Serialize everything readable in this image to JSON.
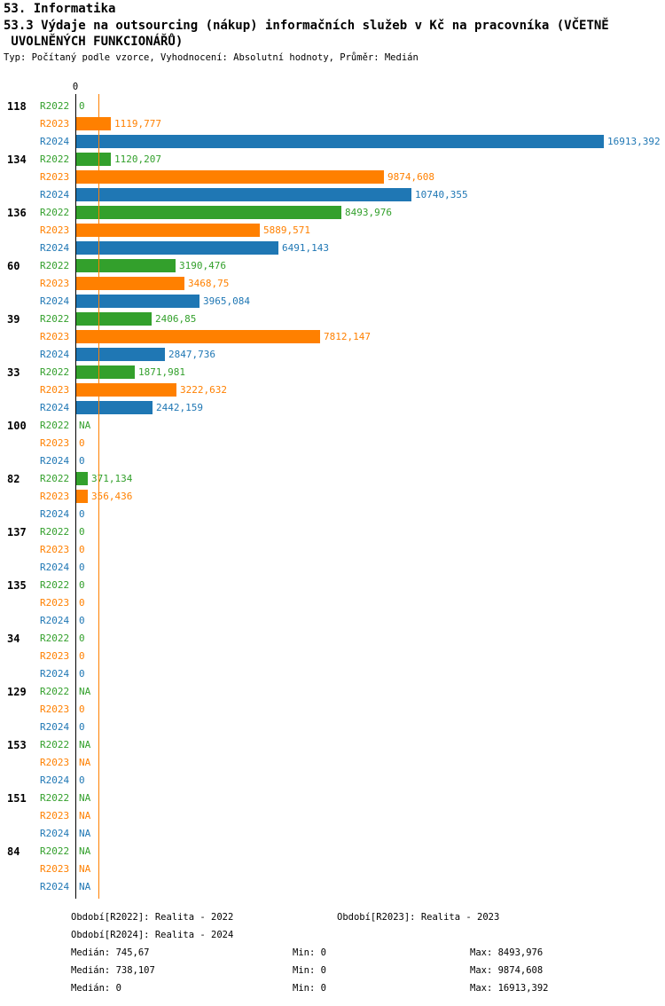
{
  "page": {
    "title": "53. Informatika",
    "subtitle_lines": [
      "53.3 Výdaje na outsourcing (nákup) informačních služeb v Kč na pracovníka (VČETNĚ",
      " UVOLNĚNÝCH FUNKCIONÁŘŮ)"
    ],
    "meta": "Typ: Počítaný podle vzorce, Vyhodnocení: Absolutní hodnoty, Průměr: Medián"
  },
  "colors": {
    "r2022": "#33a02c",
    "r2023": "#ff8000",
    "r2024": "#1f77b4",
    "axis": "#000000"
  },
  "chart_data": {
    "type": "bar",
    "orientation": "horizontal",
    "x_axis": {
      "zero_label": "0",
      "min": 0,
      "max": 16913.392,
      "grid": false
    },
    "series": [
      "R2022",
      "R2023",
      "R2024"
    ],
    "groups": [
      {
        "label": "118",
        "values": [
          0,
          1119.777,
          16913.392
        ],
        "display": [
          "0",
          "1119,777",
          "16913,392"
        ]
      },
      {
        "label": "134",
        "values": [
          1120.207,
          9874.608,
          10740.355
        ],
        "display": [
          "1120,207",
          "9874,608",
          "10740,355"
        ]
      },
      {
        "label": "136",
        "values": [
          8493.976,
          5889.571,
          6491.143
        ],
        "display": [
          "8493,976",
          "5889,571",
          "6491,143"
        ]
      },
      {
        "label": "60",
        "values": [
          3190.476,
          3468.75,
          3965.084
        ],
        "display": [
          "3190,476",
          "3468,75",
          "3965,084"
        ]
      },
      {
        "label": "39",
        "values": [
          2406.85,
          7812.147,
          2847.736
        ],
        "display": [
          "2406,85",
          "7812,147",
          "2847,736"
        ]
      },
      {
        "label": "33",
        "values": [
          1871.981,
          3222.632,
          2442.159
        ],
        "display": [
          "1871,981",
          "3222,632",
          "2442,159"
        ]
      },
      {
        "label": "100",
        "values": [
          null,
          0,
          0
        ],
        "display": [
          "NA",
          "0",
          "0"
        ]
      },
      {
        "label": "82",
        "values": [
          371.134,
          356.436,
          0
        ],
        "display": [
          "371,134",
          "356,436",
          "0"
        ]
      },
      {
        "label": "137",
        "values": [
          0,
          0,
          0
        ],
        "display": [
          "0",
          "0",
          "0"
        ]
      },
      {
        "label": "135",
        "values": [
          0,
          0,
          0
        ],
        "display": [
          "0",
          "0",
          "0"
        ]
      },
      {
        "label": "34",
        "values": [
          0,
          0,
          0
        ],
        "display": [
          "0",
          "0",
          "0"
        ]
      },
      {
        "label": "129",
        "values": [
          null,
          0,
          0
        ],
        "display": [
          "NA",
          "0",
          "0"
        ]
      },
      {
        "label": "153",
        "values": [
          null,
          null,
          0
        ],
        "display": [
          "NA",
          "NA",
          "0"
        ]
      },
      {
        "label": "151",
        "values": [
          null,
          null,
          null
        ],
        "display": [
          "NA",
          "NA",
          "NA"
        ]
      },
      {
        "label": "84",
        "values": [
          null,
          null,
          null
        ],
        "display": [
          "NA",
          "NA",
          "NA"
        ]
      }
    ],
    "medians": [
      745.67,
      738.107,
      0
    ]
  },
  "legend": {
    "r2022": "Období[R2022]: Realita - 2022",
    "r2023": "Období[R2023]: Realita - 2023",
    "r2024": "Období[R2024]: Realita - 2024"
  },
  "stats": {
    "r2022": {
      "median": "Medián: 745,67",
      "min": "Min: 0",
      "max": "Max: 8493,976"
    },
    "r2023": {
      "median": "Medián: 738,107",
      "min": "Min: 0",
      "max": "Max: 9874,608"
    },
    "r2024": {
      "median": "Medián: 0",
      "min": "Min: 0",
      "max": "Max: 16913,392"
    }
  }
}
